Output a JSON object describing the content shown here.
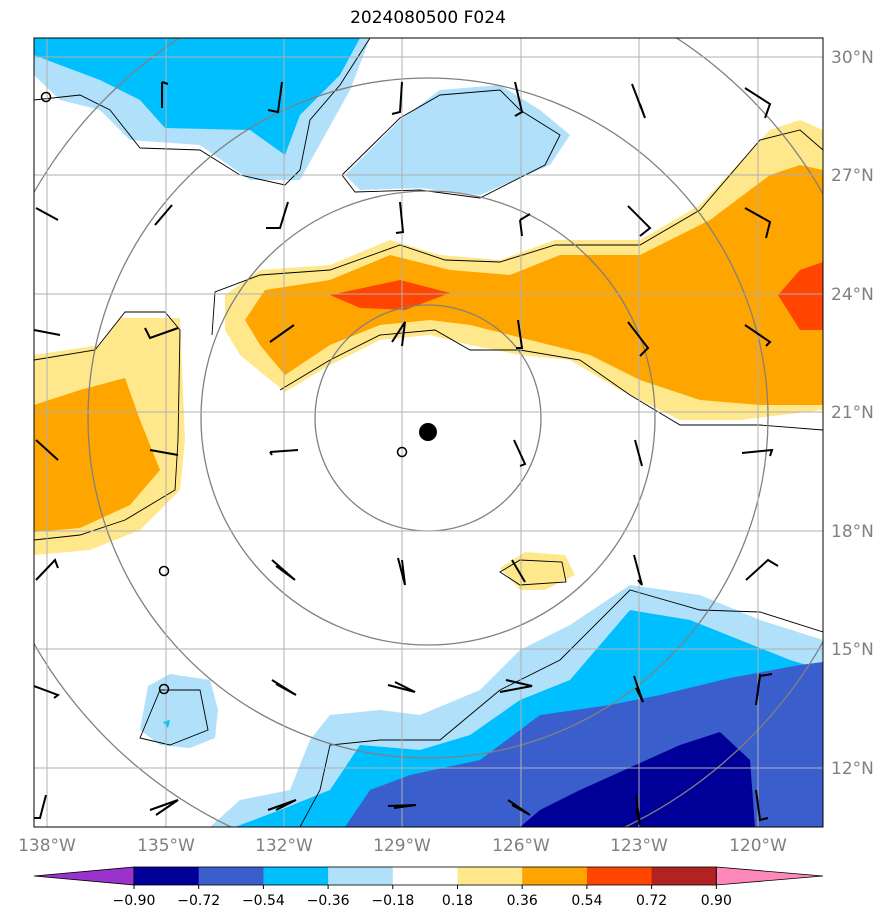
{
  "title": "2024080500 F024",
  "lat_labels": [
    "30°N",
    "27°N",
    "24°N",
    "21°N",
    "18°N",
    "15°N",
    "12°N"
  ],
  "lon_labels": [
    "138°W",
    "135°W",
    "132°W",
    "129°W",
    "126°W",
    "123°W",
    "120°W"
  ],
  "colorbar": {
    "ticks": [
      "−0.90",
      "−0.72",
      "−0.54",
      "−0.36",
      "−0.18",
      "0.18",
      "0.36",
      "0.54",
      "0.72",
      "0.90"
    ],
    "colors": [
      "#9933cc",
      "#000099",
      "#3a5fcd",
      "#00bfff",
      "#b0e0fa",
      "#ffffff",
      "#ffe88c",
      "#ffa500",
      "#ff4500",
      "#b22222",
      "#ff88bb"
    ]
  },
  "palette": {
    "grid": "#b0b0b0",
    "range_rings": "#808080",
    "contour": "#000000"
  }
}
